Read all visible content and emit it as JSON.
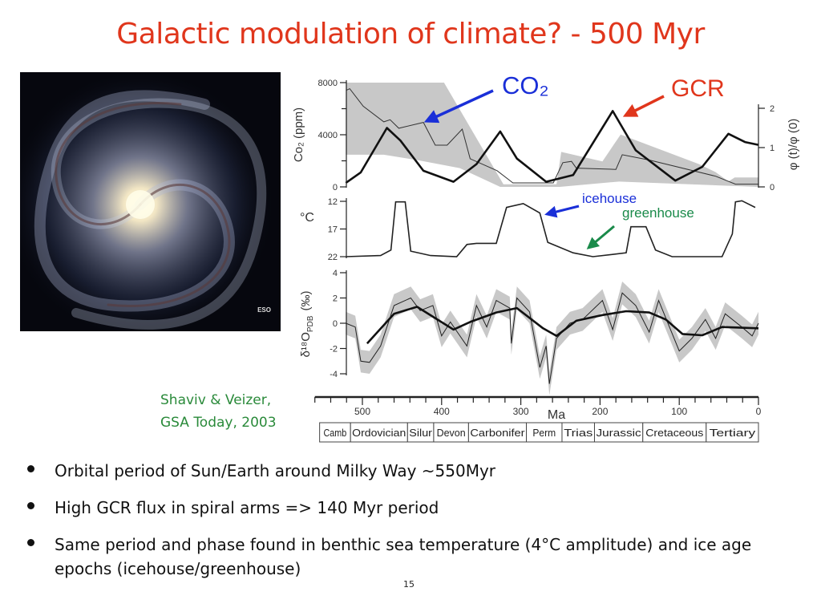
{
  "slide": {
    "title": "Galactic modulation of climate? - 500 Myr",
    "image_credit": "ESO",
    "citation_line1": "Shaviv & Veizer,",
    "citation_line2": "GSA Today, 2003",
    "bullets": [
      "Orbital period of Sun/Earth around Milky Way ~550Myr",
      "High GCR flux in spiral arms => 140 Myr period",
      "Same period and phase found in benthic sea temperature (4°C amplitude) and ice age epochs (icehouse/greenhouse)"
    ],
    "page_number": "15"
  },
  "annotations": {
    "co2": "CO₂",
    "gcr": "GCR",
    "icehouse": "icehouse",
    "greenhouse": "greenhouse",
    "colors": {
      "title": "#e0361c",
      "co2": "#1a2fd8",
      "gcr": "#e0361c",
      "icehouse": "#1a2fd8",
      "greenhouse": "#1a8a4a",
      "citation": "#2a8a3a"
    }
  },
  "chart_data": {
    "type": "line",
    "xlabel": "Ma",
    "xlim": [
      560,
      0
    ],
    "x_ticks": [
      "500",
      "400",
      "300",
      "200",
      "100",
      "0"
    ],
    "x_tick_values": [
      500,
      400,
      300,
      200,
      100,
      0
    ],
    "periods": [
      {
        "name": "Camb",
        "from": 554,
        "to": 515
      },
      {
        "name": "Ordovician",
        "from": 515,
        "to": 443
      },
      {
        "name": "Silur",
        "from": 443,
        "to": 410
      },
      {
        "name": "Devon",
        "from": 410,
        "to": 366
      },
      {
        "name": "Carbonifer",
        "from": 366,
        "to": 293
      },
      {
        "name": "Perm",
        "from": 293,
        "to": 248
      },
      {
        "name": "Trias",
        "from": 248,
        "to": 207
      },
      {
        "name": "Jurassic",
        "from": 207,
        "to": 146
      },
      {
        "name": "Cretaceous",
        "from": 146,
        "to": 66
      },
      {
        "name": "Tertiary",
        "from": 66,
        "to": 0
      }
    ],
    "panels": {
      "co2": {
        "ylabel": "Co₂ (ppm)",
        "ylim": [
          0,
          8000
        ],
        "y_ticks": [
          "8000",
          "4000",
          "0"
        ],
        "y_tick_values": [
          8000,
          4000,
          0
        ],
        "line": [
          [
            520,
            7420
          ],
          [
            516,
            7530
          ],
          [
            499,
            6190
          ],
          [
            473,
            4990
          ],
          [
            465,
            5150
          ],
          [
            454,
            4500
          ],
          [
            423,
            4950
          ],
          [
            408,
            3200
          ],
          [
            393,
            3200
          ],
          [
            374,
            4430
          ],
          [
            364,
            2160
          ],
          [
            330,
            1240
          ],
          [
            310,
            310
          ],
          [
            259,
            310
          ],
          [
            247,
            1860
          ],
          [
            236,
            1960
          ],
          [
            230,
            1440
          ],
          [
            180,
            1340
          ],
          [
            172,
            2470
          ],
          [
            138,
            2060
          ],
          [
            54,
            820
          ],
          [
            29,
            210
          ],
          [
            0,
            210
          ]
        ],
        "band_upper": [
          [
            521,
            8000
          ],
          [
            397,
            8000
          ],
          [
            322,
            200
          ],
          [
            255,
            200
          ],
          [
            249,
            2680
          ],
          [
            197,
            1960
          ],
          [
            174,
            4020
          ],
          [
            75,
            1750
          ],
          [
            54,
            1130
          ],
          [
            38,
            410
          ],
          [
            30,
            720
          ],
          [
            0,
            720
          ]
        ],
        "band_lower": [
          [
            521,
            2470
          ],
          [
            473,
            2470
          ],
          [
            431,
            2060
          ],
          [
            377,
            1440
          ],
          [
            326,
            0
          ],
          [
            251,
            0
          ],
          [
            176,
            410
          ],
          [
            0,
            0
          ]
        ]
      },
      "gcr": {
        "ylabel": "φ (t)/φ (0)",
        "ylim": [
          0,
          2
        ],
        "y_ticks": [
          "2",
          "1",
          "0"
        ],
        "y_tick_values": [
          2,
          1,
          0
        ],
        "line": [
          [
            521,
            0.1
          ],
          [
            502,
            0.37
          ],
          [
            469,
            1.5
          ],
          [
            452,
            1.18
          ],
          [
            423,
            0.41
          ],
          [
            385,
            0.13
          ],
          [
            356,
            0.58
          ],
          [
            326,
            1.41
          ],
          [
            305,
            0.72
          ],
          [
            268,
            0.13
          ],
          [
            234,
            0.3
          ],
          [
            184,
            1.93
          ],
          [
            155,
            0.93
          ],
          [
            105,
            0.16
          ],
          [
            71,
            0.51
          ],
          [
            38,
            1.35
          ],
          [
            17,
            1.14
          ],
          [
            0,
            1.07
          ]
        ]
      },
      "temperature": {
        "ylabel": "°C",
        "ylim": [
          22,
          12
        ],
        "y_ticks": [
          "12",
          "17",
          "22"
        ],
        "y_tick_values": [
          12,
          17,
          22
        ],
        "line": [
          [
            521,
            22
          ],
          [
            477,
            21.8
          ],
          [
            464,
            20.8
          ],
          [
            458,
            12.1
          ],
          [
            446,
            12.1
          ],
          [
            439,
            21
          ],
          [
            414,
            21.8
          ],
          [
            381,
            22
          ],
          [
            368,
            19.8
          ],
          [
            356,
            19.6
          ],
          [
            331,
            19.6
          ],
          [
            318,
            13.1
          ],
          [
            297,
            12.4
          ],
          [
            276,
            14.1
          ],
          [
            266,
            19.4
          ],
          [
            234,
            21.3
          ],
          [
            209,
            22
          ],
          [
            167,
            21.3
          ],
          [
            161,
            16.6
          ],
          [
            142,
            16.6
          ],
          [
            130,
            20.8
          ],
          [
            109,
            22
          ],
          [
            46,
            22
          ],
          [
            33,
            17.9
          ],
          [
            29,
            12.1
          ],
          [
            21,
            11.9
          ],
          [
            4,
            13.1
          ]
        ]
      },
      "d18o": {
        "ylabel": "δ¹⁸O",
        "ylabel_sub": "PDB",
        "ylabel_unit": "(‰)",
        "ylim": [
          -4,
          4
        ],
        "y_ticks": [
          "4",
          "2",
          "0",
          "-2",
          "-4"
        ],
        "y_tick_values": [
          4,
          2,
          0,
          -2,
          -4
        ],
        "raw": [
          [
            521,
            0
          ],
          [
            509,
            -0.3
          ],
          [
            502,
            -3
          ],
          [
            491,
            -3.1
          ],
          [
            477,
            -1.8
          ],
          [
            460,
            1.4
          ],
          [
            439,
            2
          ],
          [
            427,
            1
          ],
          [
            411,
            1.4
          ],
          [
            400,
            -1
          ],
          [
            389,
            0.1
          ],
          [
            368,
            -1.8
          ],
          [
            356,
            1.4
          ],
          [
            343,
            -0.3
          ],
          [
            331,
            1.8
          ],
          [
            314,
            1.2
          ],
          [
            312,
            -1.6
          ],
          [
            305,
            2
          ],
          [
            289,
            0.9
          ],
          [
            276,
            -3.5
          ],
          [
            268,
            -1.8
          ],
          [
            264,
            -4.8
          ],
          [
            255,
            -1.2
          ],
          [
            238,
            0
          ],
          [
            222,
            0.3
          ],
          [
            197,
            1.8
          ],
          [
            184,
            -0.5
          ],
          [
            172,
            2.4
          ],
          [
            155,
            1.4
          ],
          [
            138,
            -0.7
          ],
          [
            126,
            1.8
          ],
          [
            100,
            -2.2
          ],
          [
            84,
            -1.2
          ],
          [
            67,
            0.3
          ],
          [
            54,
            -1.2
          ],
          [
            42,
            0.75
          ],
          [
            21,
            -0.3
          ],
          [
            8,
            -1
          ],
          [
            0,
            0
          ]
        ],
        "band_halfwidth": 0.9,
        "smooth": [
          [
            494,
            -1.6
          ],
          [
            460,
            0.75
          ],
          [
            431,
            1.3
          ],
          [
            385,
            -0.5
          ],
          [
            364,
            0.1
          ],
          [
            331,
            0.85
          ],
          [
            305,
            1.2
          ],
          [
            272,
            -0.4
          ],
          [
            255,
            -1
          ],
          [
            230,
            0.2
          ],
          [
            197,
            0.65
          ],
          [
            167,
            0.95
          ],
          [
            138,
            0.85
          ],
          [
            117,
            0.3
          ],
          [
            96,
            -0.85
          ],
          [
            71,
            -0.95
          ],
          [
            46,
            -0.3
          ],
          [
            0,
            -0.4
          ]
        ]
      }
    }
  }
}
